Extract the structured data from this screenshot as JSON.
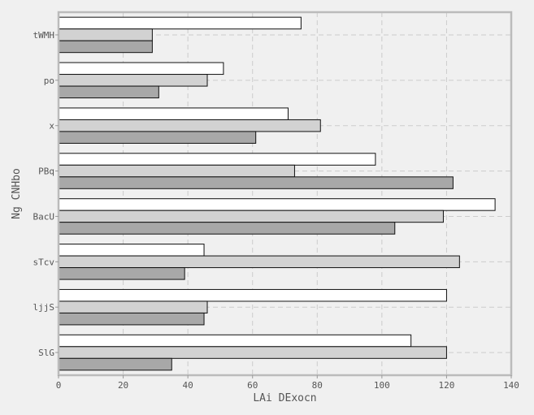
{
  "chart_data": {
    "type": "bar",
    "orientation": "horizontal",
    "title": "",
    "xlabel": "LAi DExocn",
    "ylabel": "Ng CNHbo",
    "categories": [
      "tWMH",
      "po",
      "x",
      "PBq",
      "BacU",
      "sTcv",
      "ljjS",
      "SlG"
    ],
    "series": [
      {
        "values": [
          75,
          51,
          71,
          98,
          135,
          45,
          120,
          109
        ],
        "color": "#ffffff"
      },
      {
        "values": [
          29,
          46,
          81,
          73,
          119,
          124,
          46,
          120
        ],
        "color": "#d2d2d2"
      },
      {
        "values": [
          29,
          31,
          61,
          122,
          104,
          39,
          45,
          35
        ],
        "color": "#a8a8a8"
      }
    ],
    "xlim": [
      0,
      140
    ],
    "xticks": [
      0,
      20,
      40,
      60,
      80,
      100,
      120,
      140
    ],
    "grid": true,
    "legend": "none"
  }
}
